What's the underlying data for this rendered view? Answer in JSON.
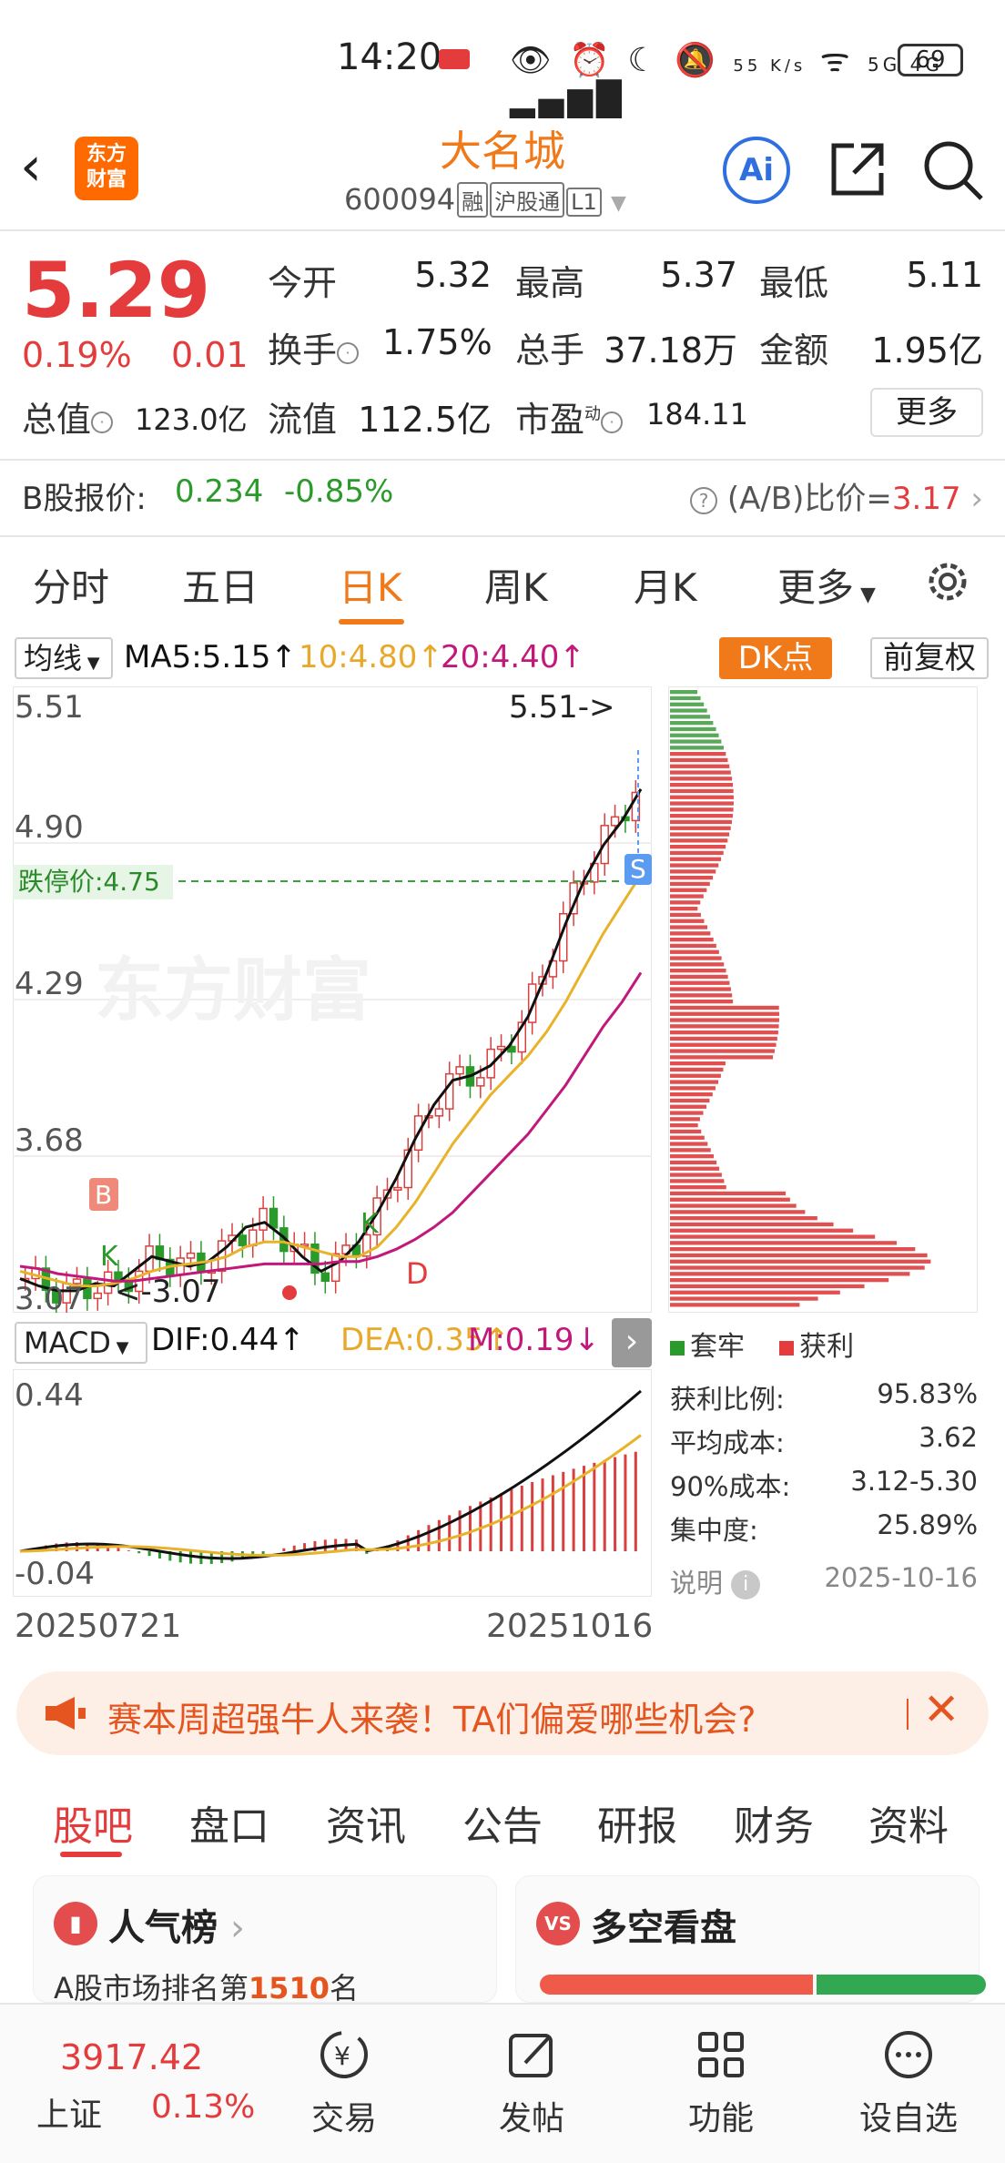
{
  "status": {
    "time": "14:20",
    "net_speed": "55 K/s",
    "battery": "69",
    "net": "5G 4G"
  },
  "header": {
    "title": "大名城",
    "code": "600094",
    "tags": [
      "融",
      "沪股通",
      "L1"
    ],
    "ai": "Ai"
  },
  "quote": {
    "price": "5.29",
    "change_pct": "0.19%",
    "change_abs": "0.01",
    "open_label": "今开",
    "open": "5.32",
    "high_label": "最高",
    "high": "5.37",
    "low_label": "最低",
    "low": "5.11",
    "turnover_label": "换手",
    "turnover": "1.75%",
    "volume_label": "总手",
    "volume": "37.18万",
    "amount_label": "金额",
    "amount": "1.95亿",
    "mktcap_label": "总值",
    "mktcap": "123.0亿",
    "float_label": "流值",
    "float": "112.5亿",
    "pe_label": "市盈",
    "pe_sup": "动",
    "pe": "184.11",
    "more": "更多"
  },
  "bshare": {
    "label": "B股报价:",
    "price": "0.234",
    "change": "-0.85%",
    "ratio_label": "(A/B)比价=",
    "ratio": "3.17"
  },
  "tabs": [
    "分时",
    "五日",
    "日K",
    "周K",
    "月K",
    "更多"
  ],
  "ma": {
    "selector": "均线",
    "ma5": "MA5:5.15↑",
    "ma10": "10:4.80↑",
    "ma20": "20:4.40↑",
    "dk": "DK点",
    "fq": "前复权"
  },
  "kchart_labels": {
    "y1": "5.51",
    "y2": "4.90",
    "y3": "4.29",
    "y4": "3.68",
    "y5": "3.07",
    "peak": "5.51->",
    "low": "<-3.07",
    "limit_down": "跌停价:4.75",
    "watermark": "东方财富",
    "b": "B",
    "s": "S",
    "k1": "K",
    "k2": "K",
    "d": "D"
  },
  "macd": {
    "selector": "MACD",
    "dif": "DIF:0.44↑",
    "dea": "DEA:0.35↑",
    "m": "M:0.19↓",
    "y_top": "0.44",
    "y_bottom": "-0.04"
  },
  "dates": {
    "start": "20250721",
    "end": "20251016"
  },
  "chips": {
    "legend_trapped": "套牢",
    "legend_profit": "获利",
    "rows": [
      {
        "label": "获利比例:",
        "value": "95.83%"
      },
      {
        "label": "平均成本:",
        "value": "3.62"
      },
      {
        "label": "90%成本:",
        "value": "3.12-5.30"
      },
      {
        "label": "集中度:",
        "value": "25.89%"
      }
    ],
    "note": "说明",
    "date": "2025-10-16"
  },
  "banner": {
    "text": "赛本周超强牛人来袭！TA们偏爱哪些机会?"
  },
  "subtabs": [
    "股吧",
    "盘口",
    "资讯",
    "公告",
    "研报",
    "财务",
    "资料"
  ],
  "cards": {
    "popular_title": "人气榜",
    "popular_sub": "A股市场排名第",
    "popular_rank": "1510",
    "popular_unit": "名",
    "bullbear_title": "多空看盘"
  },
  "bottomnav": {
    "index_value": "3917.42",
    "index_name": "上证",
    "index_change": "0.13%",
    "items": [
      "交易",
      "发帖",
      "功能",
      "设自选"
    ]
  },
  "colors": {
    "up": "#e43c3c",
    "down": "#2a9a2a",
    "accent": "#f07a1a",
    "ma5": "#111111",
    "ma10": "#e8b32a",
    "ma20": "#c2187a"
  },
  "chart_data": {
    "type": "candlestick",
    "series": [
      {
        "name": "MA5:5.15↑",
        "values": [
          3.15,
          3.12,
          3.1,
          3.1,
          3.13,
          3.12,
          3.18,
          3.24,
          3.22,
          3.2,
          3.22,
          3.28,
          3.36,
          3.38,
          3.32,
          3.24,
          3.18,
          3.22,
          3.3,
          3.42,
          3.56,
          3.72,
          3.86,
          3.96,
          3.98,
          4.02,
          4.1,
          4.22,
          4.4,
          4.6,
          4.78,
          4.92,
          5.02,
          5.15
        ]
      },
      {
        "name": "10:4.80↑",
        "values": [
          3.18,
          3.16,
          3.14,
          3.12,
          3.12,
          3.13,
          3.15,
          3.18,
          3.2,
          3.21,
          3.22,
          3.24,
          3.28,
          3.3,
          3.3,
          3.28,
          3.26,
          3.24,
          3.24,
          3.28,
          3.36,
          3.46,
          3.58,
          3.7,
          3.8,
          3.9,
          3.98,
          4.06,
          4.16,
          4.28,
          4.42,
          4.56,
          4.68,
          4.8
        ]
      },
      {
        "name": "20:4.40↑",
        "values": [
          3.2,
          3.19,
          3.17,
          3.16,
          3.15,
          3.14,
          3.14,
          3.15,
          3.16,
          3.17,
          3.18,
          3.19,
          3.2,
          3.21,
          3.21,
          3.21,
          3.21,
          3.22,
          3.22,
          3.24,
          3.27,
          3.31,
          3.36,
          3.42,
          3.5,
          3.58,
          3.66,
          3.74,
          3.84,
          3.94,
          4.06,
          4.18,
          4.28,
          4.4
        ]
      }
    ],
    "ylim": [
      3.07,
      5.51
    ]
  }
}
